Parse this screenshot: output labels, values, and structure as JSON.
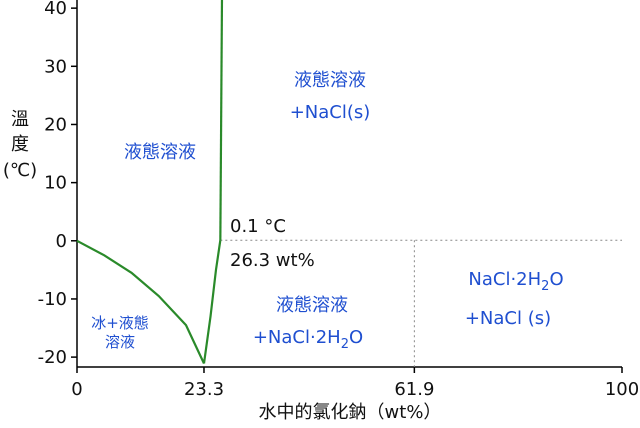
{
  "chart_data": {
    "type": "line",
    "xlabel": "水中的氯化鈉（wt%）",
    "ylabel": [
      "溫",
      "度",
      "(℃)"
    ],
    "xlim": [
      0,
      100
    ],
    "ylim": [
      -21.7,
      41.4
    ],
    "xticks": [
      0,
      23.3,
      61.9,
      100
    ],
    "yticks": [
      40,
      30,
      20,
      10,
      0,
      -10,
      -20
    ],
    "series": [
      {
        "color": "#2a8a2a",
        "x": [
          0,
          5,
          10,
          15,
          20,
          23.3
        ],
        "values": [
          0,
          -2.5,
          -5.5,
          -9.5,
          -14.5,
          -21.1
        ]
      },
      {
        "color": "#2a8a2a",
        "x": [
          23.3,
          24.5,
          25.5,
          26.3
        ],
        "values": [
          -21.1,
          -13,
          -5,
          0.1
        ]
      },
      {
        "color": "#2a8a2a",
        "x": [
          26.3,
          26.6
        ],
        "values": [
          0.1,
          41.4
        ]
      }
    ],
    "peritectic": {
      "x": 26.3,
      "y": 0.1,
      "divider_x": 61.9
    },
    "labels": {
      "liquid": "液態溶液",
      "liquid_nacl": [
        "液態溶液",
        "+NaCl(s)"
      ],
      "ice": [
        "冰+液態",
        "溶液"
      ],
      "liquid_dihydrate": [
        "液態溶液",
        "+NaCl·2H",
        "2",
        "O"
      ],
      "dihydrate_nacl": [
        "NaCl·2H",
        "2",
        "O",
        "+NaCl (s)"
      ],
      "temp": "0.1 °C",
      "comp": "26.3 wt%"
    }
  }
}
